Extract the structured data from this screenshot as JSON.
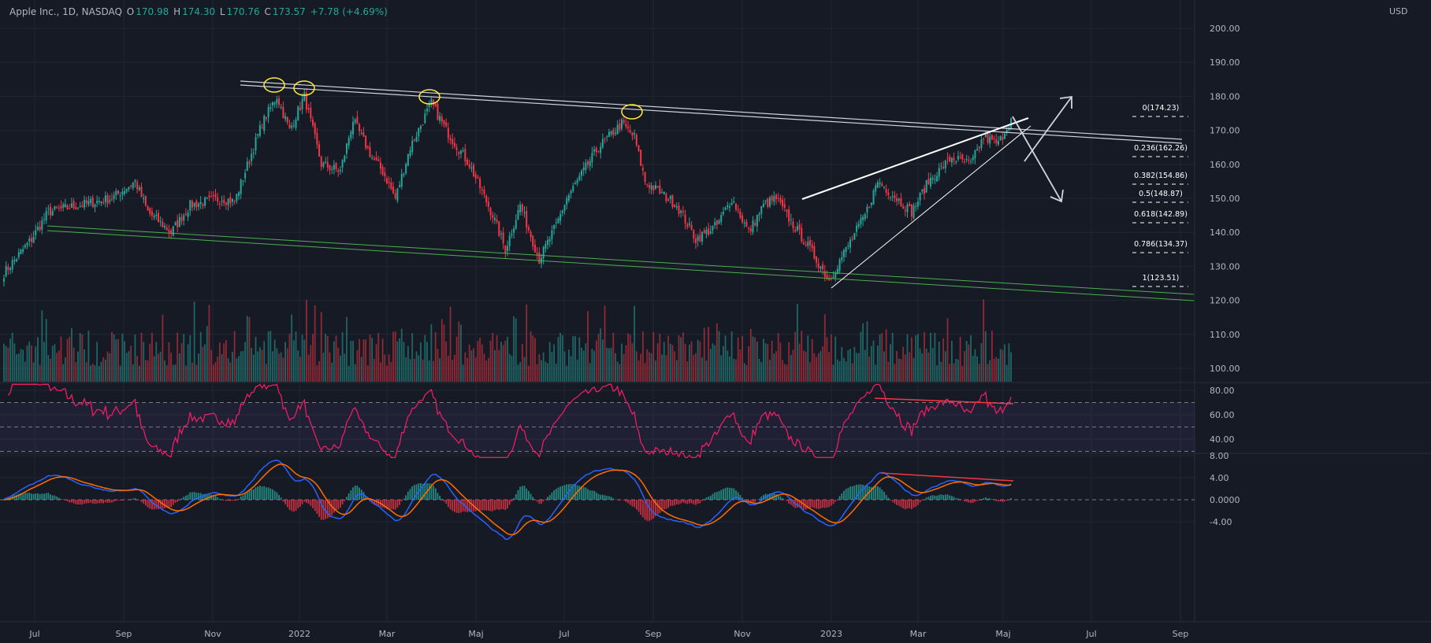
{
  "header": {
    "symbol": "Apple Inc., 1D, NASDAQ",
    "o_label": "O",
    "open": "170.98",
    "h_label": "H",
    "high": "174.30",
    "l_label": "L",
    "low": "170.76",
    "c_label": "C",
    "close": "173.57",
    "change": "+7.78 (+4.69%)"
  },
  "currency": "USD",
  "colors": {
    "up": "#26a69a",
    "down": "#f23645",
    "background": "#161a25",
    "grid": "#222632",
    "rsi": "#e91e63",
    "macd": "#2962ff",
    "signal": "#ff6d00",
    "channel": "#4caf50",
    "highlight": "#ffeb3b"
  },
  "chart_data": {
    "type": "candlestick",
    "title": "Apple Inc., 1D, NASDAQ",
    "price_axis": {
      "ticks": [
        "200.00",
        "190.00",
        "180.00",
        "170.00",
        "160.00",
        "150.00",
        "140.00",
        "130.00",
        "120.00",
        "110.00",
        "100.00"
      ],
      "range": [
        100,
        200
      ]
    },
    "rsi_axis": {
      "ticks": [
        "80.00",
        "60.00",
        "40.00"
      ],
      "bands": [
        70,
        50,
        30
      ]
    },
    "macd_axis": {
      "ticks": [
        "8.00",
        "4.00",
        "0.0000",
        "-4.00"
      ]
    },
    "time_axis": [
      "Jul",
      "Sep",
      "Nov",
      "2022",
      "Mar",
      "Maj",
      "Jul",
      "Sep",
      "Nov",
      "2023",
      "Mar",
      "Maj",
      "Jul",
      "Sep"
    ],
    "price_path": [
      [
        0,
        128
      ],
      [
        13,
        138
      ],
      [
        21,
        146
      ],
      [
        36,
        148
      ],
      [
        51,
        150
      ],
      [
        62,
        155
      ],
      [
        68,
        146
      ],
      [
        79,
        140
      ],
      [
        88,
        148
      ],
      [
        103,
        150
      ],
      [
        109,
        149
      ],
      [
        122,
        172
      ],
      [
        129,
        180
      ],
      [
        135,
        170
      ],
      [
        142,
        180
      ],
      [
        150,
        160
      ],
      [
        159,
        158
      ],
      [
        165,
        173
      ],
      [
        174,
        162
      ],
      [
        179,
        158
      ],
      [
        185,
        150
      ],
      [
        192,
        165
      ],
      [
        202,
        178
      ],
      [
        209,
        170
      ],
      [
        220,
        160
      ],
      [
        231,
        145
      ],
      [
        237,
        135
      ],
      [
        244,
        148
      ],
      [
        253,
        132
      ],
      [
        261,
        142
      ],
      [
        266,
        150
      ],
      [
        281,
        165
      ],
      [
        292,
        172
      ],
      [
        298,
        168
      ],
      [
        303,
        155
      ],
      [
        318,
        148
      ],
      [
        327,
        138
      ],
      [
        337,
        142
      ],
      [
        344,
        150
      ],
      [
        352,
        140
      ],
      [
        359,
        148
      ],
      [
        365,
        150
      ],
      [
        370,
        145
      ],
      [
        381,
        135
      ],
      [
        390,
        126
      ],
      [
        398,
        135
      ],
      [
        407,
        145
      ],
      [
        413,
        155
      ],
      [
        422,
        150
      ],
      [
        429,
        146
      ],
      [
        437,
        155
      ],
      [
        448,
        162
      ],
      [
        457,
        160
      ],
      [
        463,
        168
      ],
      [
        470,
        166
      ],
      [
        476,
        173.57
      ]
    ],
    "fibonacci": [
      {
        "label": "0(174.23)",
        "price": 174.23
      },
      {
        "label": "0.236(162.26)",
        "price": 162.26
      },
      {
        "label": "0.382(154.86)",
        "price": 154.86
      },
      {
        "label": "0.5(148.87)",
        "price": 148.87
      },
      {
        "label": "0.618(142.89)",
        "price": 142.89
      },
      {
        "label": "0.786(134.37)",
        "price": 134.37
      },
      {
        "label": "1(123.51)",
        "price": 123.51
      }
    ],
    "indicators": [
      "Volume",
      "RSI 14",
      "MACD 12 26 9"
    ]
  }
}
